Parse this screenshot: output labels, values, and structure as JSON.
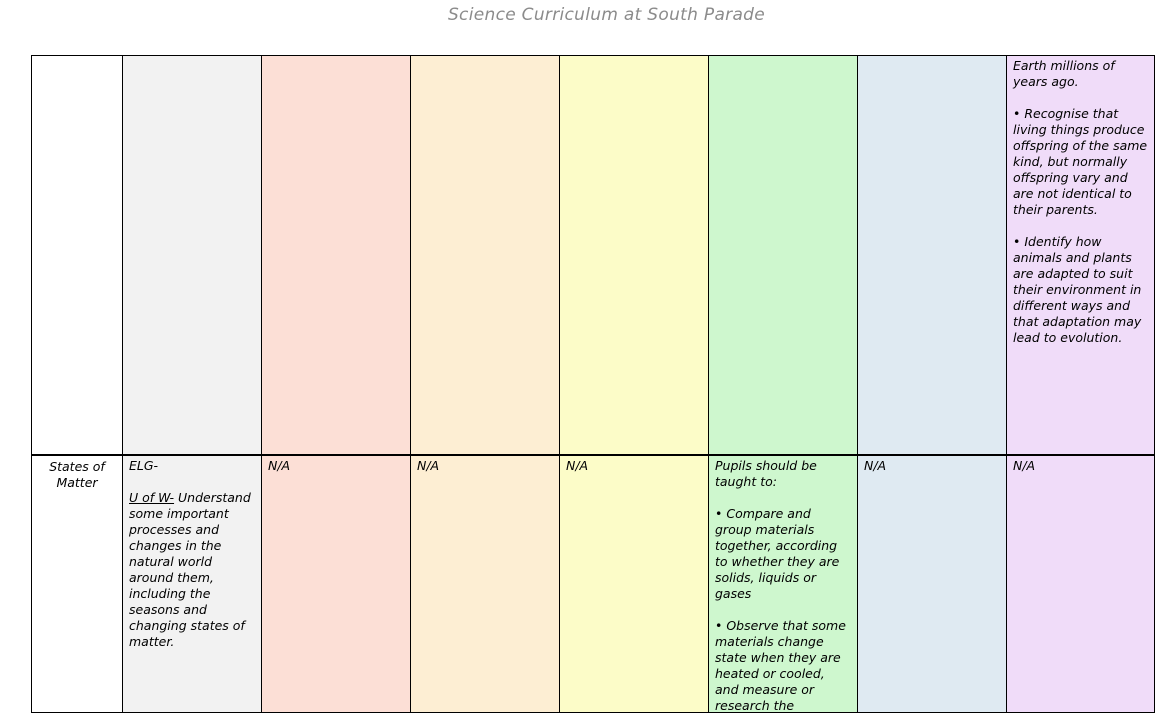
{
  "page_title": "Science Curriculum at South Parade",
  "colors": {
    "title_text": "#8b8b8b",
    "col_eyfs_gray": "#f2f2f2",
    "col_pink": "#fcdfd6",
    "col_orange": "#fdeed3",
    "col_yellow": "#fcfcc8",
    "col_green": "#cef7ce",
    "col_blue": "#dfeaf2",
    "col_purple": "#f0dcf9"
  },
  "table": {
    "row1": {
      "evolution_cell": {
        "p1": "Earth millions of years ago.",
        "p2": "• Recognise that living things produce offspring of the same kind, but normally offspring vary and are not identical to their parents.",
        "p3": "• Identify how animals and plants are adapted to suit their environment in different ways and that adaptation may lead to evolution."
      }
    },
    "row2": {
      "topic": "States of Matter",
      "elg_cell": {
        "p1": "ELG-",
        "underlined": "U of W-",
        "rest": " Understand some important processes and changes in the natural world around them, including the seasons and changing states of matter."
      },
      "na": "N/A",
      "states_cell": {
        "p1": "Pupils should be taught to:",
        "p2": "• Compare and group materials together, according to whether they are solids, liquids or gases",
        "p3": "• Observe that some materials change state when they are heated or cooled, and measure or research the temperature at which"
      }
    }
  }
}
